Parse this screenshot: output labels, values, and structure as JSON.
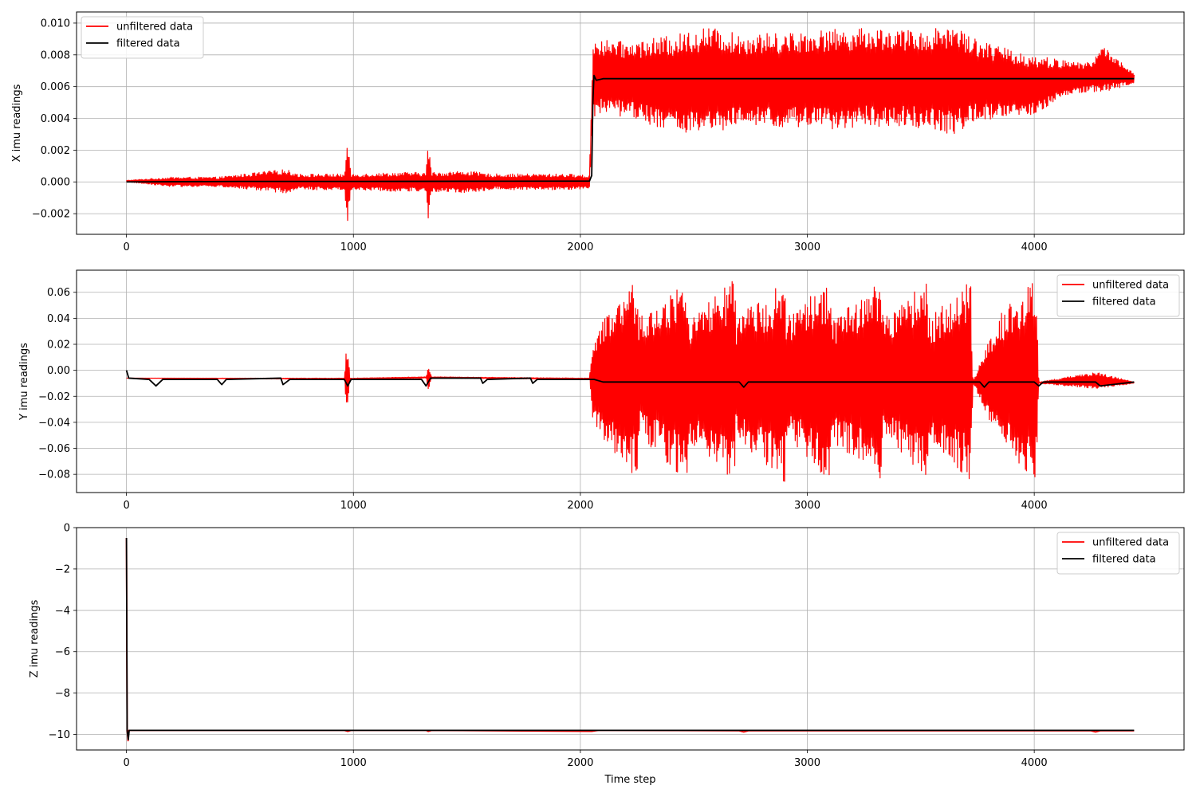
{
  "chart_data": [
    {
      "type": "line",
      "ylabel": "X imu readings",
      "xlabel": "",
      "xlim": [
        -220,
        4660
      ],
      "ylim": [
        -0.0033,
        0.0107
      ],
      "xticks": [
        0,
        1000,
        2000,
        3000,
        4000
      ],
      "xtick_labels": [
        "0",
        "1000",
        "2000",
        "3000",
        "4000"
      ],
      "yticks": [
        -0.002,
        0.0,
        0.002,
        0.004,
        0.006,
        0.008,
        0.01
      ],
      "ytick_labels": [
        "−0.002",
        "0.000",
        "0.002",
        "0.004",
        "0.006",
        "0.008",
        "0.010"
      ],
      "grid": true,
      "legend": "upper-left",
      "series": [
        {
          "name": "unfiltered data",
          "color": "#ff0000",
          "x": [
            0,
            200,
            400,
            700,
            760,
            960,
            975,
            990,
            1200,
            1320,
            1330,
            1345,
            1500,
            1600,
            1800,
            1950,
            2040,
            2055,
            2070,
            2200,
            2400,
            2560,
            2700,
            2900,
            3100,
            3300,
            3500,
            3650,
            3720,
            3850,
            4000,
            4150,
            4250,
            4300,
            4440
          ],
          "upper": [
            0.0001,
            0.0003,
            0.0003,
            0.0008,
            0.0005,
            0.0005,
            0.0025,
            0.0005,
            0.0006,
            0.0006,
            0.0026,
            0.0006,
            0.0007,
            0.0005,
            0.0005,
            0.0005,
            0.0004,
            0.009,
            0.009,
            0.0088,
            0.0092,
            0.0098,
            0.0093,
            0.0094,
            0.0096,
            0.0097,
            0.0095,
            0.01,
            0.0092,
            0.0085,
            0.008,
            0.0076,
            0.0075,
            0.0086,
            0.0068
          ],
          "lower": [
            0.0,
            -0.0003,
            -0.0003,
            -0.0007,
            -0.0005,
            -0.0005,
            -0.0025,
            -0.0005,
            -0.0006,
            -0.0006,
            -0.0026,
            -0.0006,
            -0.0007,
            -0.0005,
            -0.0005,
            -0.0005,
            -0.0004,
            0.0038,
            0.0042,
            0.0041,
            0.0032,
            0.0029,
            0.0035,
            0.0034,
            0.0033,
            0.0035,
            0.0034,
            0.0029,
            0.0038,
            0.0039,
            0.0042,
            0.0055,
            0.0057,
            0.0056,
            0.0062
          ]
        },
        {
          "name": "filtered data",
          "color": "#000000",
          "x": [
            0,
            500,
            1000,
            1500,
            2000,
            2040,
            2050,
            2055,
            2060,
            2070,
            2100,
            2500,
            3000,
            3500,
            4000,
            4440
          ],
          "y": [
            0.0,
            3e-05,
            3e-05,
            4e-05,
            5e-05,
            5e-05,
            0.0004,
            0.005,
            0.0067,
            0.0064,
            0.0065,
            0.0065,
            0.0065,
            0.0065,
            0.0065,
            0.0065
          ]
        }
      ]
    },
    {
      "type": "line",
      "ylabel": "Y imu readings",
      "xlabel": "",
      "xlim": [
        -220,
        4660
      ],
      "ylim": [
        -0.094,
        0.077
      ],
      "xticks": [
        0,
        1000,
        2000,
        3000,
        4000
      ],
      "xtick_labels": [
        "0",
        "1000",
        "2000",
        "3000",
        "4000"
      ],
      "yticks": [
        -0.08,
        -0.06,
        -0.04,
        -0.02,
        0.0,
        0.02,
        0.04,
        0.06
      ],
      "ytick_labels": [
        "−0.08",
        "−0.06",
        "−0.04",
        "−0.02",
        "0.00",
        "0.02",
        "0.04",
        "0.06"
      ],
      "grid": true,
      "legend": "upper-right",
      "series": [
        {
          "name": "unfiltered data",
          "color": "#ff0000",
          "x": [
            0,
            960,
            970,
            975,
            985,
            1320,
            1330,
            1345,
            2040,
            2055,
            2070,
            2250,
            2255,
            2470,
            2475,
            2680,
            2685,
            2900,
            2905,
            3100,
            3105,
            3330,
            3335,
            3530,
            3535,
            3720,
            3730,
            3850,
            3860,
            3990,
            4010,
            4020,
            4250,
            4290,
            4440
          ],
          "upper": [
            -0.006,
            -0.006,
            0.019,
            0.019,
            -0.006,
            -0.005,
            0.003,
            -0.005,
            -0.006,
            0.028,
            0.032,
            0.07,
            0.04,
            0.07,
            0.04,
            0.07,
            0.04,
            0.07,
            0.04,
            0.07,
            0.04,
            0.07,
            0.04,
            0.07,
            0.04,
            0.07,
            -0.008,
            0.045,
            0.045,
            0.068,
            0.068,
            -0.009,
            -0.002,
            -0.002,
            -0.009
          ],
          "lower": [
            -0.006,
            -0.007,
            -0.031,
            -0.031,
            -0.007,
            -0.006,
            -0.016,
            -0.006,
            -0.007,
            -0.044,
            -0.048,
            -0.085,
            -0.05,
            -0.086,
            -0.055,
            -0.085,
            -0.053,
            -0.086,
            -0.05,
            -0.086,
            -0.055,
            -0.086,
            -0.05,
            -0.086,
            -0.055,
            -0.085,
            -0.01,
            -0.06,
            -0.06,
            -0.084,
            -0.084,
            -0.01,
            -0.014,
            -0.014,
            -0.01
          ]
        },
        {
          "name": "filtered data",
          "color": "#000000",
          "x": [
            0,
            10,
            100,
            130,
            160,
            400,
            420,
            440,
            680,
            690,
            720,
            960,
            975,
            990,
            1300,
            1320,
            1340,
            1560,
            1570,
            1590,
            1780,
            1790,
            1810,
            2040,
            2060,
            2100,
            2500,
            2700,
            2720,
            2740,
            3000,
            3500,
            3760,
            3780,
            3800,
            4000,
            4020,
            4040,
            4270,
            4290,
            4440
          ],
          "y": [
            0.0,
            -0.006,
            -0.007,
            -0.012,
            -0.007,
            -0.007,
            -0.011,
            -0.007,
            -0.006,
            -0.011,
            -0.007,
            -0.007,
            -0.012,
            -0.007,
            -0.007,
            -0.012,
            -0.006,
            -0.006,
            -0.01,
            -0.007,
            -0.006,
            -0.01,
            -0.007,
            -0.007,
            -0.007,
            -0.009,
            -0.009,
            -0.009,
            -0.013,
            -0.009,
            -0.009,
            -0.009,
            -0.009,
            -0.013,
            -0.009,
            -0.009,
            -0.012,
            -0.009,
            -0.009,
            -0.012,
            -0.009
          ]
        }
      ]
    },
    {
      "type": "line",
      "ylabel": "Z imu readings",
      "xlabel": "Time step",
      "xlim": [
        -220,
        4660
      ],
      "ylim": [
        -10.75,
        0.0
      ],
      "xticks": [
        0,
        1000,
        2000,
        3000,
        4000
      ],
      "xtick_labels": [
        "0",
        "1000",
        "2000",
        "3000",
        "4000"
      ],
      "yticks": [
        -10,
        -8,
        -6,
        -4,
        -2,
        0
      ],
      "ytick_labels": [
        "−10",
        "−8",
        "−6",
        "−4",
        "−2",
        "0"
      ],
      "grid": true,
      "legend": "upper-right",
      "series": [
        {
          "name": "unfiltered data",
          "color": "#ff0000",
          "x": [
            0,
            3,
            7,
            10,
            20,
            960,
            975,
            990,
            1320,
            1330,
            1345,
            2050,
            2080,
            2700,
            2720,
            2740,
            4250,
            4270,
            4290,
            4440
          ],
          "y": [
            -0.5,
            -9.8,
            -10.3,
            -9.8,
            -9.8,
            -9.8,
            -9.85,
            -9.8,
            -9.8,
            -9.85,
            -9.8,
            -9.85,
            -9.8,
            -9.82,
            -9.88,
            -9.82,
            -9.82,
            -9.88,
            -9.82,
            -9.82
          ]
        },
        {
          "name": "filtered data",
          "color": "#000000",
          "x": [
            0,
            3,
            8,
            12,
            30,
            4440
          ],
          "y": [
            -0.5,
            -9.8,
            -10.25,
            -9.8,
            -9.8,
            -9.8
          ]
        }
      ]
    }
  ]
}
